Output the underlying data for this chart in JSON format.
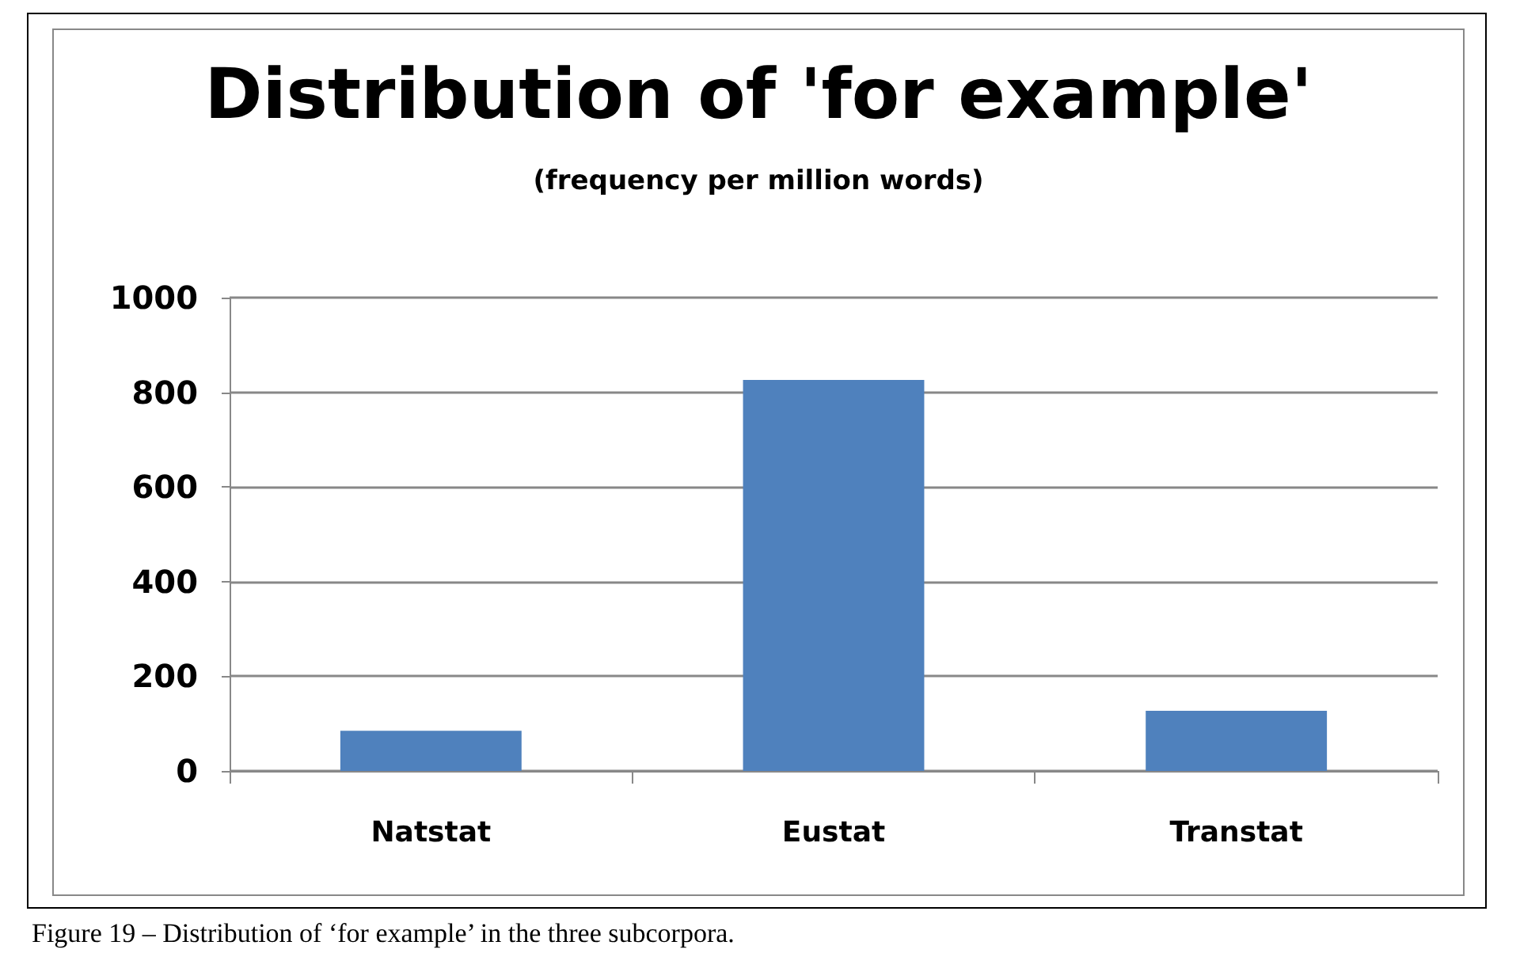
{
  "chart_data": {
    "type": "bar",
    "title": "Distribution of 'for example'",
    "subtitle": "(frequency per million words)",
    "categories": [
      "Natstat",
      "Eustat",
      "Transtat"
    ],
    "values": [
      85,
      826,
      127
    ],
    "color": "#4f81bd",
    "ylim": [
      0,
      1000
    ],
    "yticks": [
      0,
      200,
      400,
      600,
      800,
      1000
    ],
    "grid": "y",
    "annotations": [
      "Figure 19 – Distribution of ‘for example’ in the three subcorpora."
    ]
  }
}
